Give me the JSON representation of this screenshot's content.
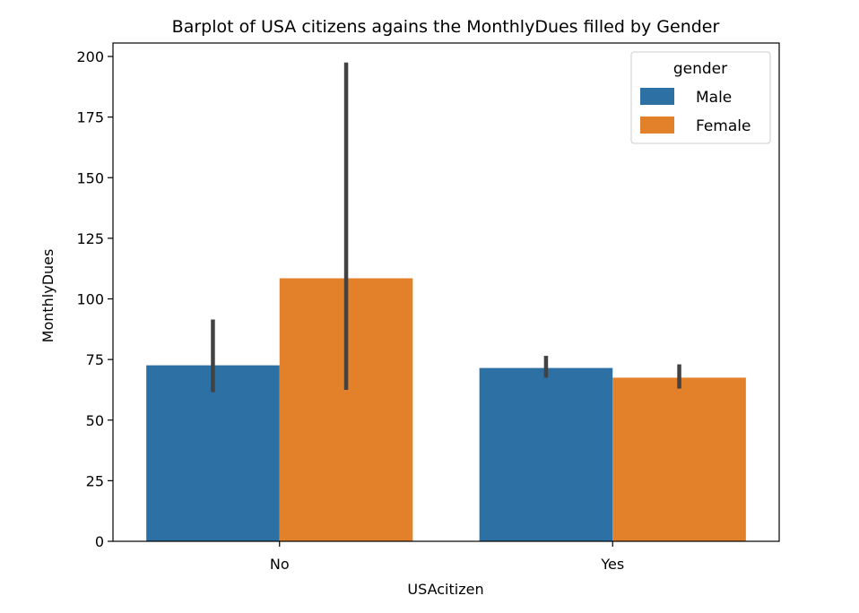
{
  "chart_data": {
    "type": "bar",
    "title": "Barplot of USA citizens agains the MonthlyDues filled by Gender",
    "xlabel": "USAcitizen",
    "ylabel": "MonthlyDues",
    "categories": [
      "No",
      "Yes"
    ],
    "ylim": [
      0,
      200
    ],
    "yticks": [
      0,
      25,
      50,
      75,
      100,
      125,
      150,
      175,
      200
    ],
    "grid": false,
    "legend": {
      "title": "gender",
      "placement": "top-right"
    },
    "series": [
      {
        "name": "Male",
        "color": "#2d71a4",
        "values": [
          72.6,
          71.5
        ],
        "ci": [
          [
            61.5,
            91.5
          ],
          [
            67.5,
            76.5
          ]
        ]
      },
      {
        "name": "Female",
        "color": "#e3812b",
        "values": [
          108.5,
          67.5
        ],
        "ci": [
          [
            62.5,
            197.5
          ],
          [
            63.0,
            73.0
          ]
        ]
      }
    ]
  }
}
